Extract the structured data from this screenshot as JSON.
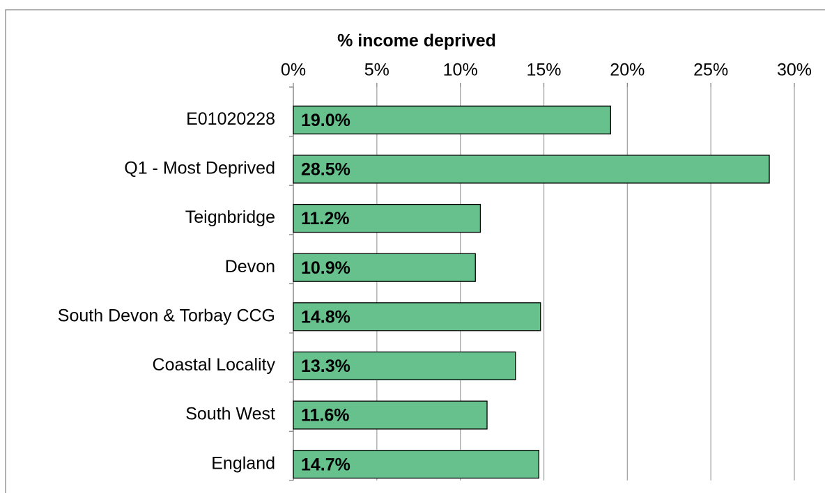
{
  "chart_data": {
    "type": "bar",
    "orientation": "horizontal",
    "x_label": "% income deprived",
    "categories": [
      "E01020228",
      "Q1 - Most Deprived",
      "Teignbridge",
      "Devon",
      "South Devon & Torbay CCG",
      "Coastal Locality",
      "South West",
      "England"
    ],
    "values": [
      19.0,
      28.5,
      11.2,
      10.9,
      14.8,
      13.3,
      11.6,
      14.7
    ],
    "value_labels": [
      "19.0%",
      "28.5%",
      "11.2%",
      "10.9%",
      "14.8%",
      "13.3%",
      "11.6%",
      "14.7%"
    ],
    "color": "#66c18c",
    "xlim": [
      0,
      30
    ],
    "xticks": [
      {
        "value": 0,
        "label": "0%"
      },
      {
        "value": 5,
        "label": "5%"
      },
      {
        "value": 10,
        "label": "10%"
      },
      {
        "value": 15,
        "label": "15%"
      },
      {
        "value": 20,
        "label": "20%"
      },
      {
        "value": 25,
        "label": "25%"
      },
      {
        "value": 30,
        "label": "30%"
      }
    ],
    "grid": true
  }
}
